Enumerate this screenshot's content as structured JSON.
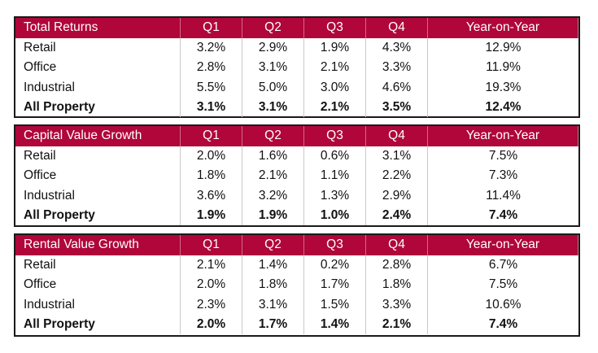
{
  "tables": [
    {
      "title": "Total Returns",
      "columns": [
        "Q1",
        "Q2",
        "Q3",
        "Q4",
        "Year-on-Year"
      ],
      "rows": [
        {
          "label": "Retail",
          "values": [
            "3.2%",
            "2.9%",
            "1.9%",
            "4.3%",
            "12.9%"
          ]
        },
        {
          "label": "Office",
          "values": [
            "2.8%",
            "3.1%",
            "2.1%",
            "3.3%",
            "11.9%"
          ]
        },
        {
          "label": "Industrial",
          "values": [
            "5.5%",
            "5.0%",
            "3.0%",
            "4.6%",
            "19.3%"
          ]
        },
        {
          "label": "All Property",
          "values": [
            "3.1%",
            "3.1%",
            "2.1%",
            "3.5%",
            "12.4%"
          ]
        }
      ]
    },
    {
      "title": "Capital Value Growth",
      "columns": [
        "Q1",
        "Q2",
        "Q3",
        "Q4",
        "Year-on-Year"
      ],
      "rows": [
        {
          "label": "Retail",
          "values": [
            "2.0%",
            "1.6%",
            "0.6%",
            "3.1%",
            "7.5%"
          ]
        },
        {
          "label": "Office",
          "values": [
            "1.8%",
            "2.1%",
            "1.1%",
            "2.2%",
            "7.3%"
          ]
        },
        {
          "label": "Industrial",
          "values": [
            "3.6%",
            "3.2%",
            "1.3%",
            "2.9%",
            "11.4%"
          ]
        },
        {
          "label": "All Property",
          "values": [
            "1.9%",
            "1.9%",
            "1.0%",
            "2.4%",
            "7.4%"
          ]
        }
      ]
    },
    {
      "title": "Rental Value Growth",
      "columns": [
        "Q1",
        "Q2",
        "Q3",
        "Q4",
        "Year-on-Year"
      ],
      "rows": [
        {
          "label": "Retail",
          "values": [
            "2.1%",
            "1.4%",
            "0.2%",
            "2.8%",
            "6.7%"
          ]
        },
        {
          "label": "Office",
          "values": [
            "2.0%",
            "1.8%",
            "1.7%",
            "1.8%",
            "7.5%"
          ]
        },
        {
          "label": "Industrial",
          "values": [
            "2.3%",
            "3.1%",
            "1.5%",
            "3.3%",
            "10.6%"
          ]
        },
        {
          "label": "All Property",
          "values": [
            "2.0%",
            "1.7%",
            "1.4%",
            "2.1%",
            "7.4%"
          ]
        }
      ]
    }
  ],
  "colors": {
    "header_bg": "#b0063a",
    "header_text": "#ffffff",
    "body_text": "#111111",
    "border": "#1a1a1a"
  }
}
